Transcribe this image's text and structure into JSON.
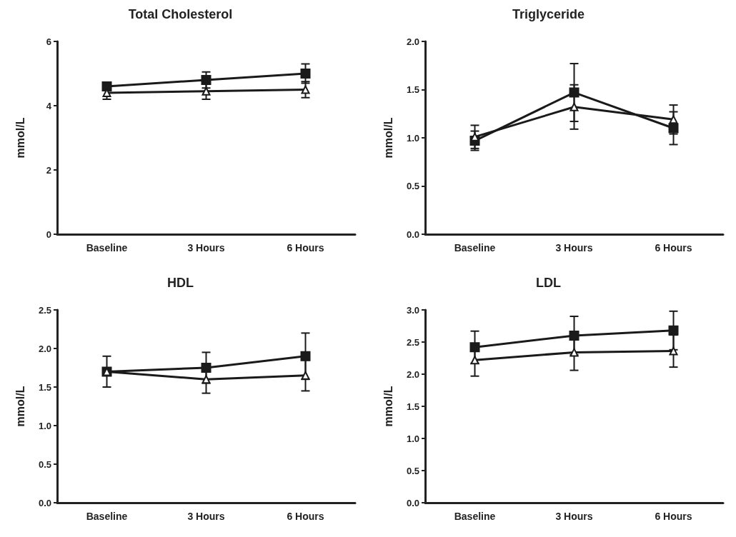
{
  "chart_data": [
    {
      "type": "line",
      "title": "Total Cholesterol",
      "ylabel": "mmol/L",
      "categories": [
        "Baseline",
        "3 Hours",
        "6 Hours"
      ],
      "ylim": [
        0,
        6
      ],
      "yticks": [
        0,
        2,
        4,
        6
      ],
      "grid": false,
      "line_style": "solid",
      "series": [
        {
          "color": "#1a1a1a",
          "marker": "square",
          "values": [
            4.6,
            4.8,
            5.0
          ],
          "errors": [
            0.1,
            0.25,
            0.3
          ]
        },
        {
          "color": "#1a1a1a",
          "marker": "triangle",
          "values": [
            4.4,
            4.45,
            4.5
          ],
          "errors": [
            0.2,
            0.25,
            0.25
          ]
        }
      ]
    },
    {
      "type": "line",
      "title": "Triglyceride",
      "ylabel": "mmol/L",
      "categories": [
        "Baseline",
        "3 Hours",
        "6 Hours"
      ],
      "ylim": [
        0,
        2
      ],
      "yticks": [
        {
          "value": 0,
          "label": "0.0"
        },
        0.5,
        {
          "value": 1,
          "label": "1.0"
        },
        1.5,
        {
          "value": 2,
          "label": "2.0"
        }
      ],
      "grid": false,
      "line_style": "solid",
      "series": [
        {
          "color": "#1a1a1a",
          "marker": "square",
          "values": [
            0.97,
            1.47,
            1.1
          ],
          "errors": [
            0.1,
            0.3,
            0.17
          ]
        },
        {
          "color": "#1a1a1a",
          "marker": "triangle",
          "values": [
            1.01,
            1.32,
            1.19
          ],
          "errors": [
            0.12,
            0.23,
            0.15
          ]
        }
      ]
    },
    {
      "type": "line",
      "title": "HDL",
      "ylabel": "mmol/L",
      "categories": [
        "Baseline",
        "3 Hours",
        "6 Hours"
      ],
      "ylim": [
        0,
        2.5
      ],
      "yticks": [
        {
          "value": 0,
          "label": "0.0"
        },
        0.5,
        {
          "value": 1,
          "label": "1.0"
        },
        1.5,
        {
          "value": 2,
          "label": "2.0"
        },
        2.5
      ],
      "grid": false,
      "line_style": "solid",
      "series": [
        {
          "color": "#1a1a1a",
          "marker": "square",
          "values": [
            1.7,
            1.75,
            1.9
          ],
          "errors": [
            0.2,
            0.2,
            0.3
          ]
        },
        {
          "color": "#1a1a1a",
          "marker": "triangle",
          "values": [
            1.7,
            1.6,
            1.65
          ],
          "errors": [
            null,
            0.18,
            0.2
          ]
        }
      ]
    },
    {
      "type": "line",
      "title": "LDL",
      "ylabel": "mmol/L",
      "categories": [
        "Baseline",
        "3 Hours",
        "6 Hours"
      ],
      "ylim": [
        0,
        3
      ],
      "yticks": [
        {
          "value": 0,
          "label": "0.0"
        },
        0.5,
        {
          "value": 1,
          "label": "1.0"
        },
        1.5,
        {
          "value": 2,
          "label": "2.0"
        },
        2.5,
        {
          "value": 3,
          "label": "3.0"
        }
      ],
      "grid": false,
      "line_style": "solid",
      "series": [
        {
          "color": "#1a1a1a",
          "marker": "square",
          "values": [
            2.42,
            2.6,
            2.68
          ],
          "errors": [
            0.25,
            0.3,
            0.3
          ]
        },
        {
          "color": "#1a1a1a",
          "marker": "triangle",
          "values": [
            2.22,
            2.34,
            2.36
          ],
          "errors": [
            0.25,
            0.28,
            0.25
          ]
        }
      ]
    }
  ]
}
